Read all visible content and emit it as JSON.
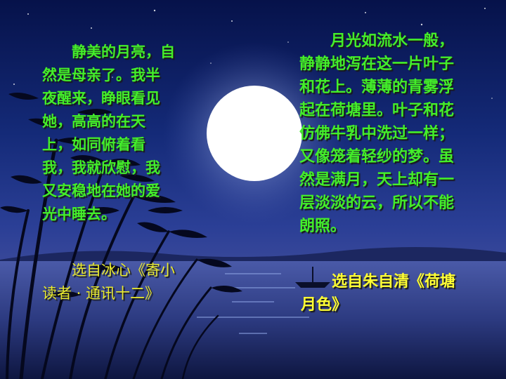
{
  "colors": {
    "poem_text": "#43ee2a",
    "source_text_left": "#e9ea2e",
    "source_text_right": "#ffff33",
    "sky_top": "#06124a",
    "moon": "#ffffff"
  },
  "left": {
    "poem_lines": [
      "　　静美的月亮，自",
      "然是母亲了。我半",
      "夜醒来，睁眼看见",
      "她，高高的在天",
      "上，如同俯着看",
      "我，我就欣慰，我",
      "又安稳地在她的爱",
      "光中睡去。"
    ],
    "source_lines": [
      "　　选自冰心《寄小",
      "读者 · 通讯十二》"
    ]
  },
  "right": {
    "poem_lines": [
      "　　月光如流水一般，",
      "静静地泻在这一片叶子",
      "和花上。薄薄的青雾浮",
      "起在荷塘里。叶子和花",
      "仿佛牛乳中洗过一样；",
      "又像笼着轻纱的梦。虽",
      "然是满月，天上却有一",
      "层淡淡的云，所以不能",
      "朗照。"
    ],
    "source_lines": [
      "　　选自朱自清《荷塘",
      "月色》"
    ]
  }
}
